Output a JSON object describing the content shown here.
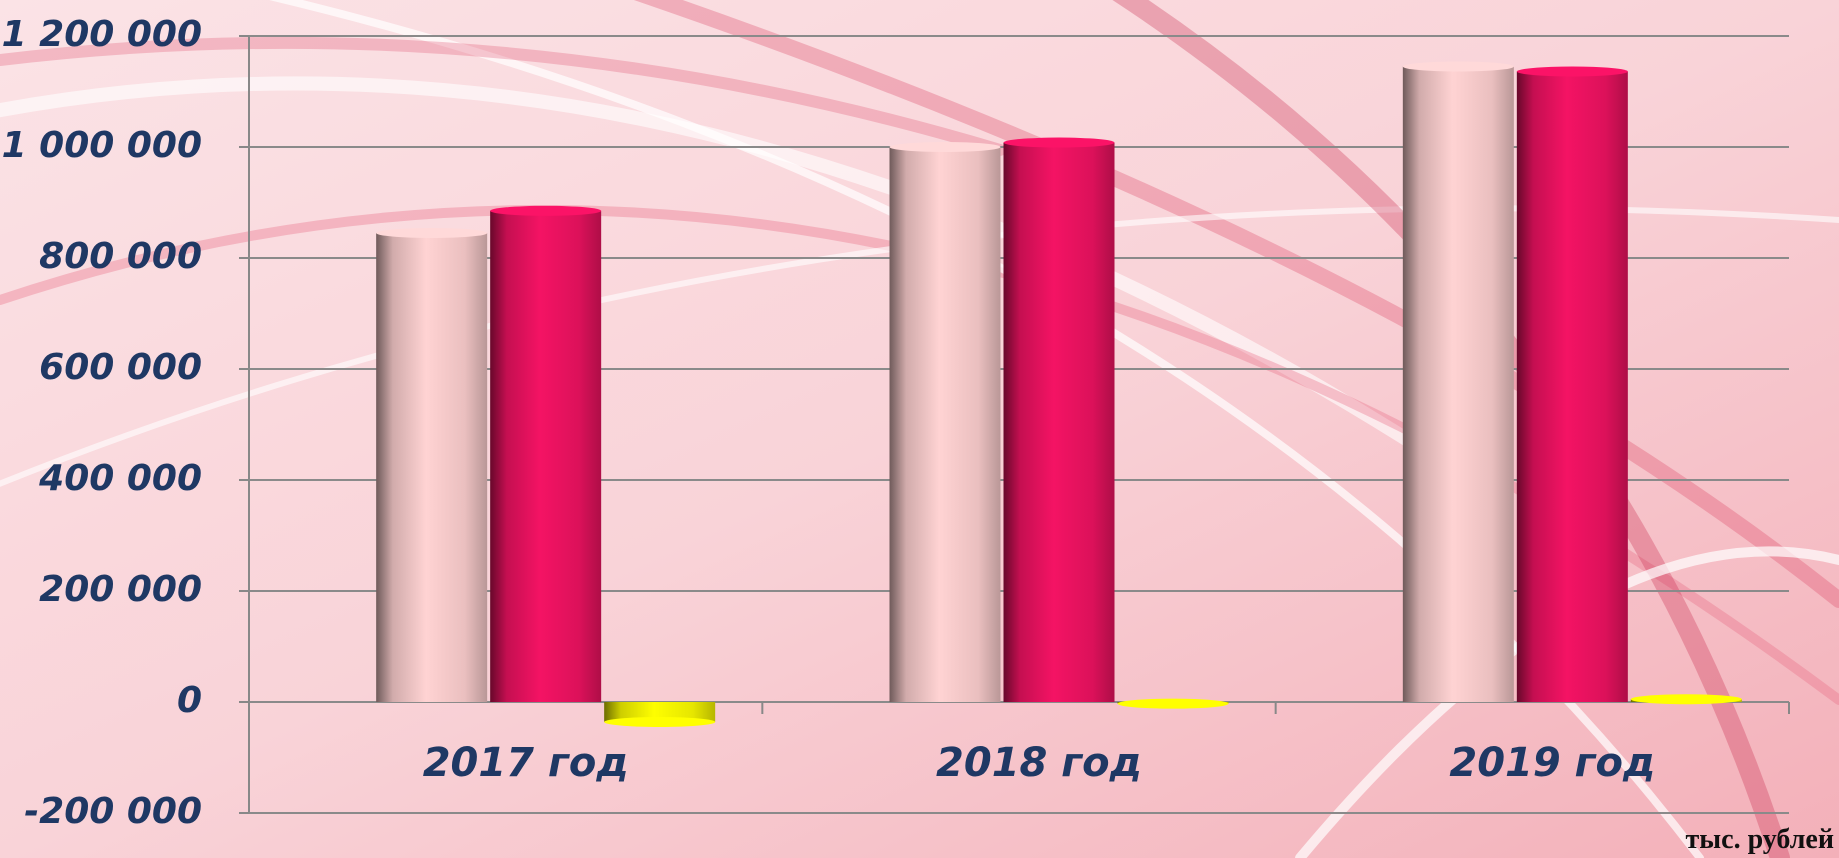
{
  "chart_data": {
    "type": "bar",
    "categories": [
      "2017 год",
      "2018 год",
      "2019 год"
    ],
    "series": [
      {
        "color": "#f6c9c9",
        "values": [
          845000,
          1000000,
          1145000
        ]
      },
      {
        "color": "#e8125f",
        "values": [
          885000,
          1008000,
          1136000
        ]
      },
      {
        "color": "#f2f200",
        "values": [
          -36000,
          -3000,
          5000
        ]
      }
    ],
    "ylim": [
      -200000,
      1200000
    ],
    "yticks": [
      {
        "value": -200000,
        "label": "-200 000"
      },
      {
        "value": 0,
        "label": "0"
      },
      {
        "value": 200000,
        "label": "200 000"
      },
      {
        "value": 400000,
        "label": "400 000"
      },
      {
        "value": 600000,
        "label": "600 000"
      },
      {
        "value": 800000,
        "label": "800 000"
      },
      {
        "value": 1000000,
        "label": "1 000 000"
      },
      {
        "value": 1200000,
        "label": "1 200 000"
      }
    ],
    "grid": true,
    "unit_label": "тыс. рублей"
  }
}
